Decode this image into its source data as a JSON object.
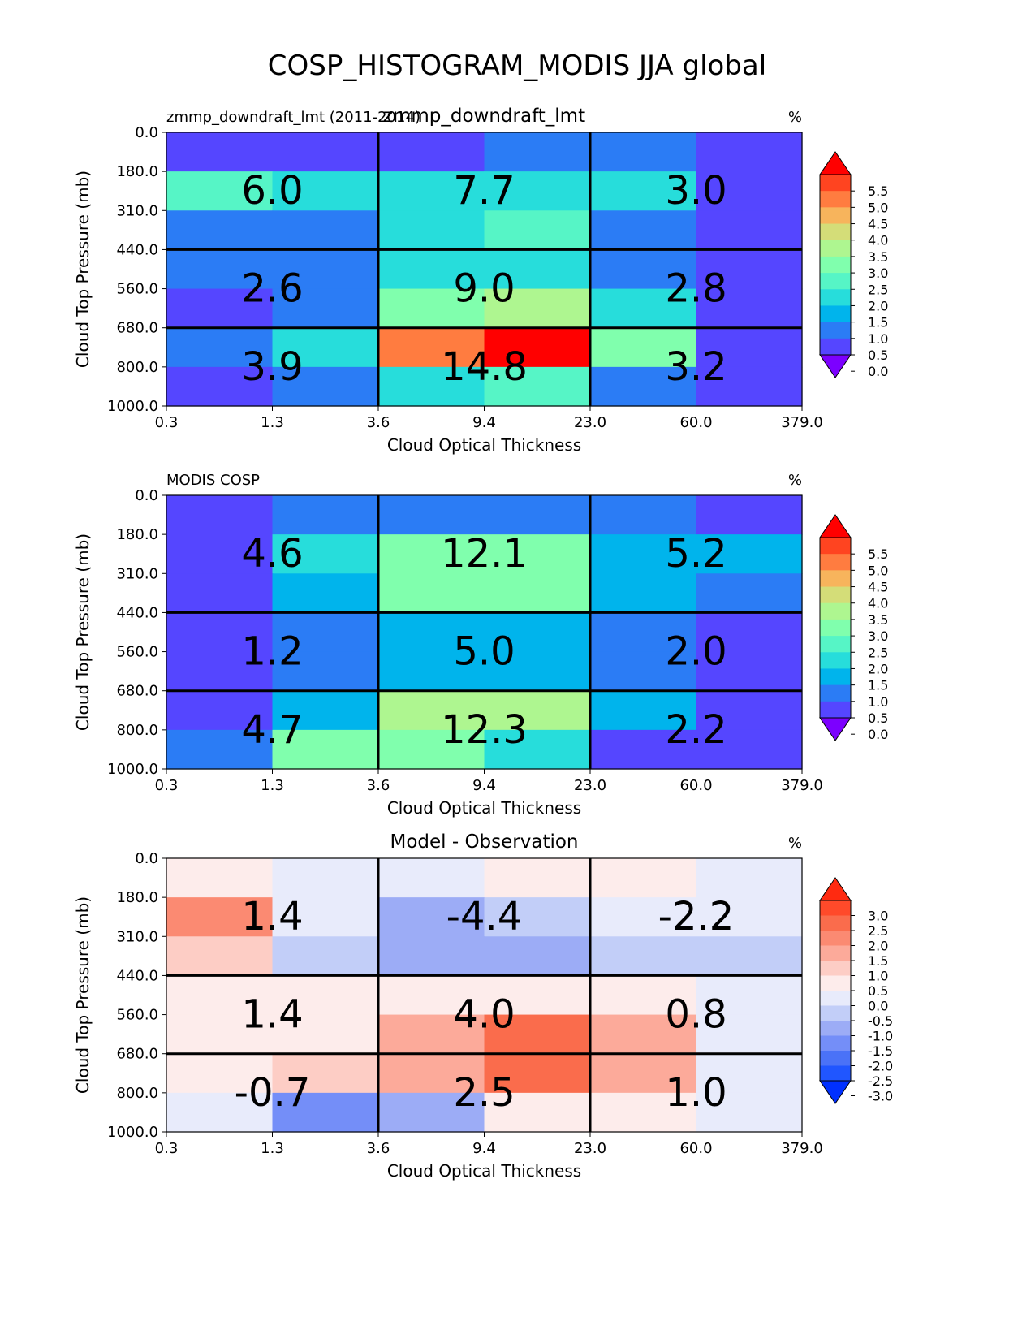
{
  "title": "COSP_HISTOGRAM_MODIS JJA global",
  "colors": {
    "rainbow_levels": [
      "#7c00ff",
      "#5546ff",
      "#2b7cf5",
      "#00b4ec",
      "#27dddb",
      "#56f5c6",
      "#80ffad",
      "#aef690",
      "#d4dd78",
      "#f7b45c",
      "#ff7c40",
      "#ff4420",
      "#ff0000"
    ],
    "diff_levels": [
      "#0030ff",
      "#2056ff",
      "#4a72f7",
      "#748ef8",
      "#9cacf6",
      "#c2cef8",
      "#e8ebfb",
      "#fdeceb",
      "#fdcdc5",
      "#fcaa9a",
      "#fb8a72",
      "#fa6c4c",
      "#ff4a2a",
      "#ff2a10"
    ]
  },
  "chart_data": [
    {
      "type": "heatmap",
      "left_label": "zmmp_downdraft_lmt (2011-2014)",
      "center_label": "zmmp_downdraft_lmt",
      "right_label": "%",
      "xlabel": "Cloud Optical Thickness",
      "ylabel": "Cloud Top Pressure (mb)",
      "x_ticks": [
        "0.3",
        "1.3",
        "3.6",
        "9.4",
        "23.0",
        "60.0",
        "379.0"
      ],
      "y_ticks": [
        "0.0",
        "180.0",
        "310.0",
        "440.0",
        "560.0",
        "680.0",
        "800.0",
        "1000.0"
      ],
      "colorbar": {
        "scale": "rainbow",
        "labels": [
          "5.5",
          "5.0",
          "4.5",
          "4.0",
          "3.5",
          "3.0",
          "2.5",
          "2.0",
          "1.5",
          "1.0",
          "0.5",
          "0.0"
        ]
      },
      "cells": [
        [
          0.2,
          0.2,
          0.3,
          0.8,
          0.8,
          0.2
        ],
        [
          2.2,
          1.7,
          1.7,
          1.9,
          1.7,
          0.3
        ],
        [
          0.8,
          0.8,
          1.7,
          2.0,
          0.8,
          0.2
        ],
        [
          0.8,
          0.8,
          1.6,
          1.7,
          0.8,
          0.2
        ],
        [
          0.2,
          0.8,
          2.7,
          3.2,
          1.8,
          0.3
        ],
        [
          0.8,
          1.9,
          4.8,
          5.8,
          2.6,
          0.2
        ],
        [
          0.2,
          0.8,
          1.9,
          2.2,
          0.8,
          0.3
        ]
      ],
      "block_values": [
        [
          "6.0",
          "7.7",
          "3.0"
        ],
        [
          "2.6",
          "9.0",
          "2.8"
        ],
        [
          "3.9",
          "14.8",
          "3.2"
        ]
      ]
    },
    {
      "type": "heatmap",
      "left_label": "MODIS COSP",
      "center_label": "",
      "right_label": "%",
      "xlabel": "Cloud Optical Thickness",
      "ylabel": "Cloud Top Pressure (mb)",
      "x_ticks": [
        "0.3",
        "1.3",
        "3.6",
        "9.4",
        "23.0",
        "60.0",
        "379.0"
      ],
      "y_ticks": [
        "0.0",
        "180.0",
        "310.0",
        "440.0",
        "560.0",
        "680.0",
        "800.0",
        "1000.0"
      ],
      "colorbar": {
        "scale": "rainbow",
        "labels": [
          "5.5",
          "5.0",
          "4.5",
          "4.0",
          "3.5",
          "3.0",
          "2.5",
          "2.0",
          "1.5",
          "1.0",
          "0.5",
          "0.0"
        ]
      },
      "cells": [
        [
          0.3,
          0.8,
          0.8,
          0.8,
          0.8,
          0.3
        ],
        [
          0.3,
          1.9,
          2.7,
          2.7,
          1.2,
          1.2
        ],
        [
          0.3,
          1.2,
          2.7,
          2.7,
          1.2,
          0.8
        ],
        [
          0.3,
          0.8,
          1.2,
          1.2,
          0.8,
          0.3
        ],
        [
          0.3,
          0.8,
          1.2,
          1.2,
          0.8,
          0.3
        ],
        [
          0.3,
          1.2,
          3.2,
          3.2,
          1.2,
          0.3
        ],
        [
          0.8,
          2.7,
          2.9,
          1.9,
          0.3,
          0.3
        ]
      ],
      "block_values": [
        [
          "4.6",
          "12.1",
          "5.2"
        ],
        [
          "1.2",
          "5.0",
          "2.0"
        ],
        [
          "4.7",
          "12.3",
          "2.2"
        ]
      ]
    },
    {
      "type": "heatmap",
      "left_label": "",
      "center_label": "Model - Observation",
      "right_label": "%",
      "xlabel": "Cloud Optical Thickness",
      "ylabel": "Cloud Top Pressure (mb)",
      "x_ticks": [
        "0.3",
        "1.3",
        "3.6",
        "9.4",
        "23.0",
        "60.0",
        "379.0"
      ],
      "y_ticks": [
        "0.0",
        "180.0",
        "310.0",
        "440.0",
        "560.0",
        "680.0",
        "800.0",
        "1000.0"
      ],
      "colorbar": {
        "scale": "diff",
        "labels": [
          "3.0",
          "2.5",
          "2.0",
          "1.5",
          "1.0",
          "0.5",
          "0.0",
          "-0.5",
          "-1.0",
          "-1.5",
          "-2.0",
          "-2.5",
          "-3.0"
        ]
      },
      "cells": [
        [
          0.2,
          -0.2,
          -0.2,
          0.2,
          0.2,
          -0.2
        ],
        [
          1.7,
          -0.2,
          -1.2,
          -0.7,
          -0.2,
          -0.2
        ],
        [
          0.7,
          -0.7,
          -1.2,
          -1.2,
          -0.7,
          -0.7
        ],
        [
          0.2,
          0.2,
          0.2,
          0.2,
          0.2,
          -0.2
        ],
        [
          0.2,
          0.2,
          1.2,
          2.2,
          1.2,
          -0.2
        ],
        [
          0.2,
          0.7,
          1.2,
          2.2,
          1.2,
          -0.2
        ],
        [
          -0.2,
          -1.7,
          -1.2,
          0.2,
          0.2,
          -0.2
        ]
      ],
      "block_values": [
        [
          "1.4",
          "-4.4",
          "-2.2"
        ],
        [
          "1.4",
          "4.0",
          "0.8"
        ],
        [
          "-0.7",
          "2.5",
          "1.0"
        ]
      ]
    }
  ]
}
